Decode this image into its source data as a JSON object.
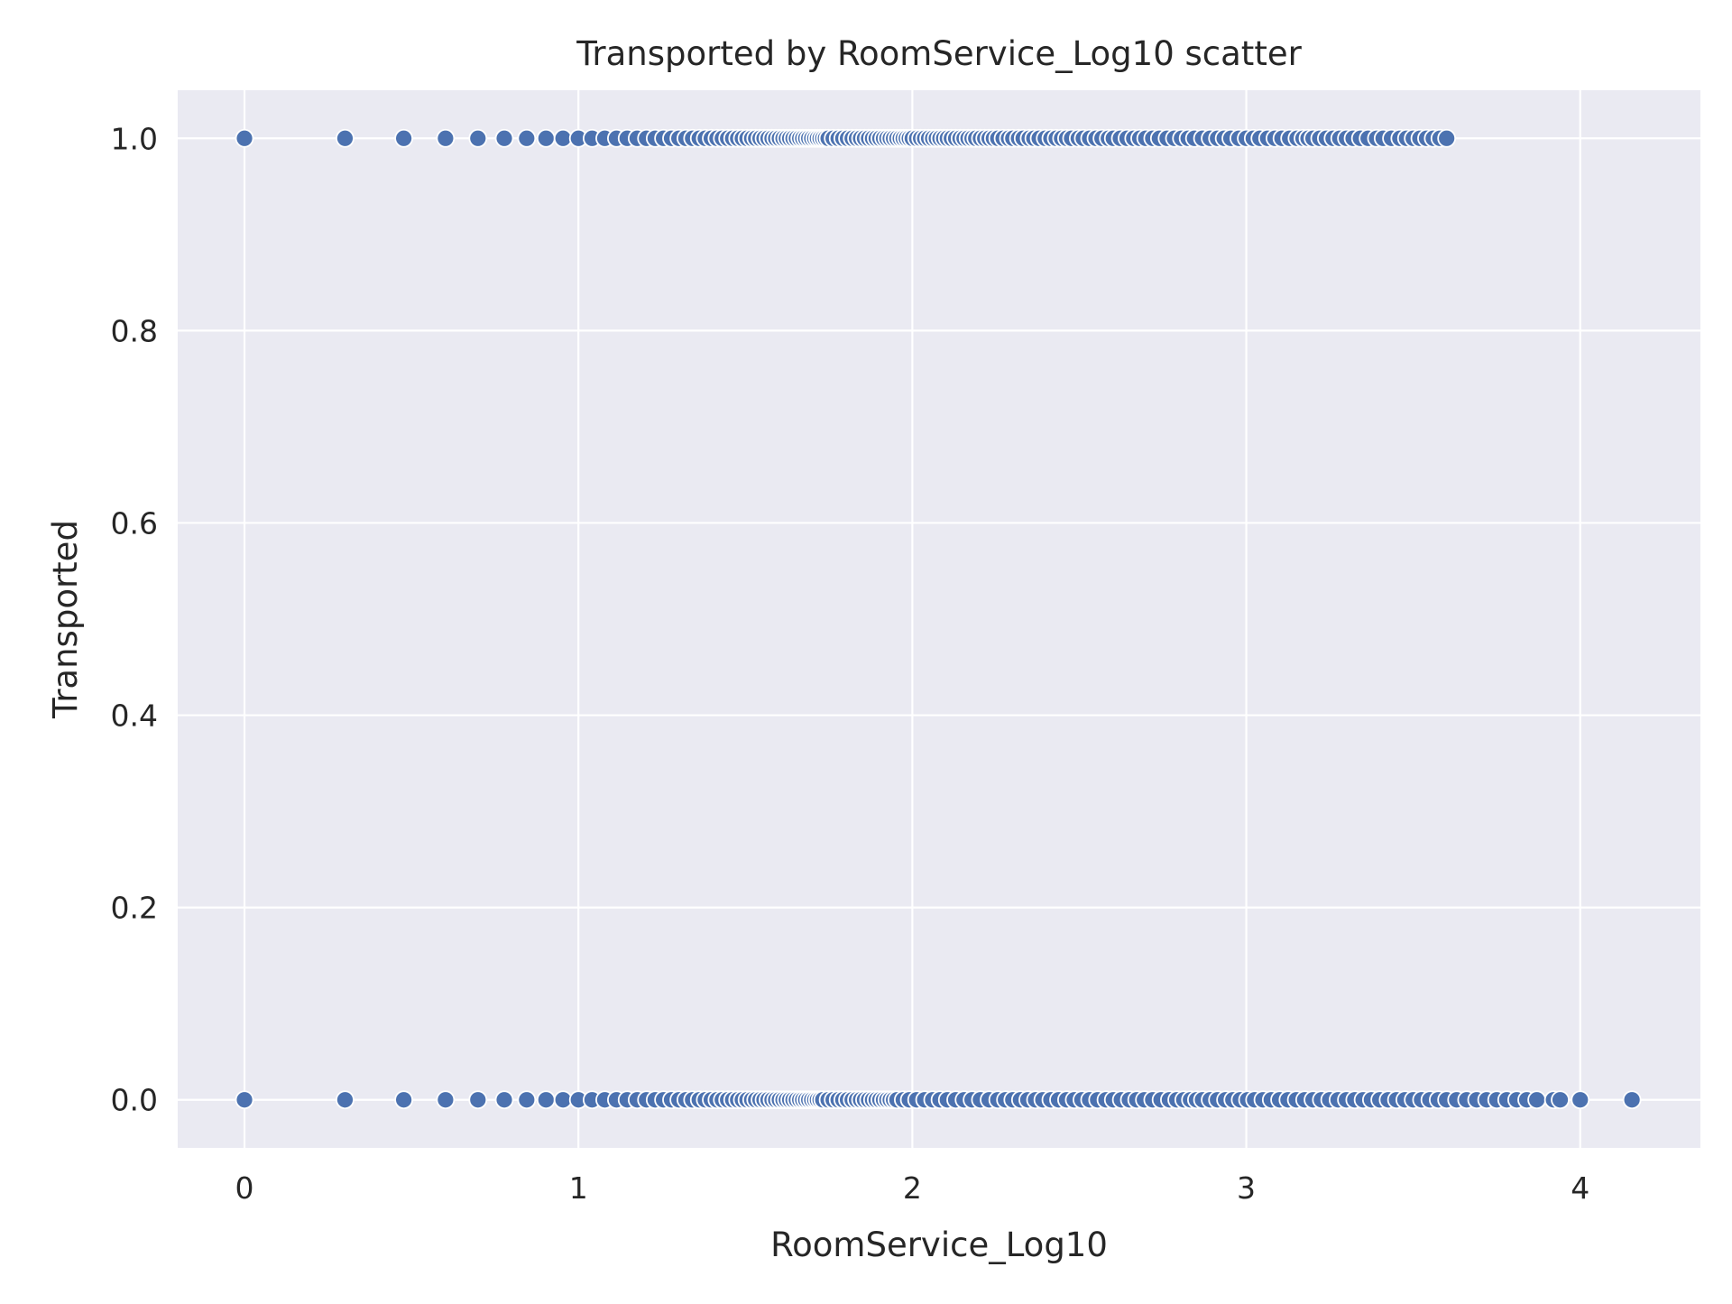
{
  "chart_data": {
    "type": "scatter",
    "title": "Transported by RoomService_Log10 scatter",
    "xlabel": "RoomService_Log10",
    "ylabel": "Transported",
    "xlim": [
      -0.2,
      4.36
    ],
    "ylim": [
      -0.05,
      1.05
    ],
    "x_ticks": [
      0,
      1,
      2,
      3,
      4
    ],
    "x_tick_labels": [
      "0",
      "1",
      "2",
      "3",
      "4"
    ],
    "y_ticks": [
      0.0,
      0.2,
      0.4,
      0.6,
      0.8,
      1.0
    ],
    "y_tick_labels": [
      "0.0",
      "0.2",
      "0.4",
      "0.6",
      "0.8",
      "1.0"
    ],
    "grid": true,
    "background": "#eaeaf2",
    "gridline_color": "#ffffff",
    "marker_color": "#4c72b0",
    "marker_edge_color": "#ffffff",
    "series": [
      {
        "y": 1,
        "x": [
          0,
          0.301,
          0.477,
          0.602,
          0.699,
          0.778,
          0.845,
          0.903,
          0.954,
          1.0,
          1.041,
          1.079,
          1.114,
          1.146,
          1.176,
          1.204,
          1.23,
          1.255,
          1.279,
          1.301,
          1.322,
          1.342,
          1.362,
          1.38,
          1.398,
          1.415,
          1.431,
          1.447,
          1.462,
          1.477,
          1.491,
          1.505,
          1.519,
          1.531,
          1.544,
          1.556,
          1.568,
          1.58,
          1.591,
          1.602,
          1.613,
          1.623,
          1.633,
          1.643,
          1.653,
          1.663,
          1.672,
          1.681,
          1.69,
          1.699,
          1.708,
          1.716,
          1.724,
          1.732,
          1.74,
          1.748,
          1.763,
          1.778,
          1.792,
          1.806,
          1.82,
          1.833,
          1.845,
          1.857,
          1.869,
          1.881,
          1.892,
          1.903,
          1.914,
          1.924,
          1.934,
          1.944,
          1.954,
          1.964,
          1.973,
          1.982,
          1.991,
          2.0,
          2.013,
          2.025,
          2.037,
          2.049,
          2.061,
          2.072,
          2.083,
          2.094,
          2.105,
          2.117,
          2.13,
          2.143,
          2.155,
          2.167,
          2.179,
          2.19,
          2.204,
          2.217,
          2.23,
          2.243,
          2.256,
          2.272,
          2.288,
          2.301,
          2.318,
          2.332,
          2.35,
          2.364,
          2.38,
          2.398,
          2.415,
          2.431,
          2.447,
          2.462,
          2.477,
          2.497,
          2.512,
          2.531,
          2.55,
          2.568,
          2.587,
          2.602,
          2.623,
          2.643,
          2.663,
          2.681,
          2.699,
          2.72,
          2.74,
          2.763,
          2.785,
          2.806,
          2.826,
          2.845,
          2.869,
          2.892,
          2.914,
          2.934,
          2.954,
          2.978,
          3.0,
          3.021,
          3.041,
          3.064,
          3.086,
          3.107,
          3.13,
          3.152,
          3.17,
          3.185,
          3.2,
          3.22,
          3.24,
          3.26,
          3.28,
          3.3,
          3.32,
          3.342,
          3.365,
          3.39,
          3.41,
          3.435,
          3.46,
          3.48,
          3.5,
          3.52,
          3.54,
          3.56,
          3.58,
          3.6
        ]
      },
      {
        "y": 0,
        "x": [
          0,
          0.301,
          0.477,
          0.602,
          0.699,
          0.778,
          0.845,
          0.903,
          0.954,
          1.0,
          1.041,
          1.079,
          1.114,
          1.146,
          1.176,
          1.204,
          1.23,
          1.255,
          1.279,
          1.301,
          1.322,
          1.342,
          1.362,
          1.38,
          1.398,
          1.415,
          1.431,
          1.447,
          1.462,
          1.477,
          1.491,
          1.505,
          1.519,
          1.531,
          1.544,
          1.556,
          1.568,
          1.58,
          1.591,
          1.602,
          1.613,
          1.623,
          1.633,
          1.643,
          1.653,
          1.663,
          1.672,
          1.681,
          1.69,
          1.699,
          1.708,
          1.716,
          1.724,
          1.732,
          1.748,
          1.763,
          1.778,
          1.792,
          1.806,
          1.82,
          1.833,
          1.845,
          1.857,
          1.869,
          1.881,
          1.892,
          1.903,
          1.914,
          1.924,
          1.934,
          1.944,
          1.954,
          1.973,
          1.991,
          2.013,
          2.037,
          2.061,
          2.083,
          2.105,
          2.13,
          2.155,
          2.179,
          2.204,
          2.23,
          2.256,
          2.279,
          2.301,
          2.324,
          2.346,
          2.369,
          2.391,
          2.415,
          2.438,
          2.462,
          2.485,
          2.508,
          2.531,
          2.555,
          2.58,
          2.602,
          2.626,
          2.65,
          2.672,
          2.695,
          2.72,
          2.745,
          2.77,
          2.792,
          2.813,
          2.833,
          2.851,
          2.869,
          2.892,
          2.914,
          2.938,
          2.96,
          2.982,
          3.004,
          3.025,
          3.05,
          3.075,
          3.1,
          3.125,
          3.15,
          3.175,
          3.2,
          3.225,
          3.25,
          3.275,
          3.3,
          3.325,
          3.35,
          3.375,
          3.4,
          3.425,
          3.45,
          3.475,
          3.5,
          3.525,
          3.55,
          3.575,
          3.6,
          3.63,
          3.66,
          3.69,
          3.72,
          3.75,
          3.78,
          3.81,
          3.84,
          3.87,
          3.92,
          3.94,
          4.0,
          4.155
        ]
      }
    ]
  }
}
